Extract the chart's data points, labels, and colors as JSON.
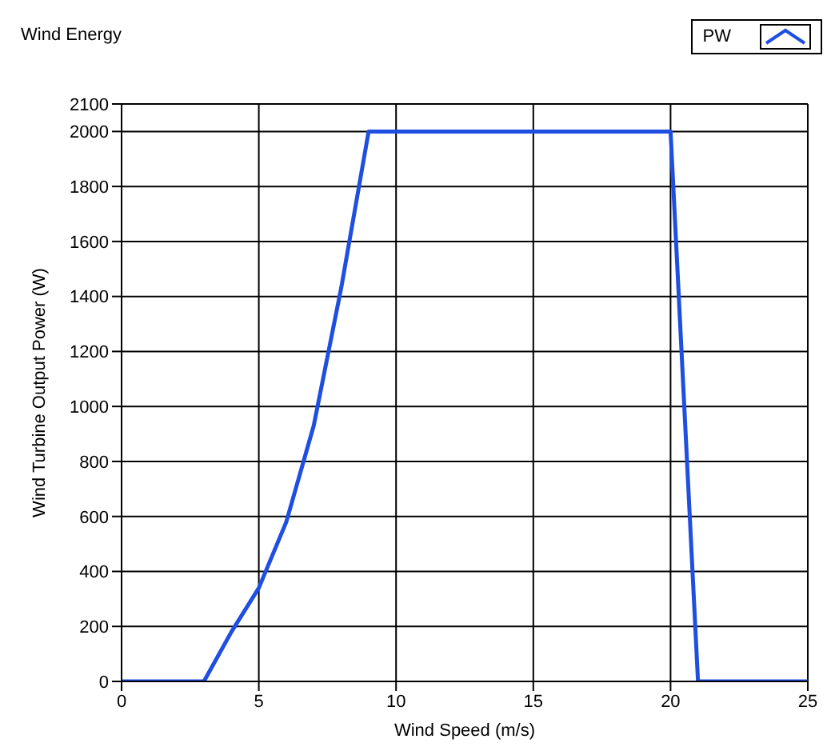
{
  "chart_data": {
    "type": "line",
    "title": "Wind Energy",
    "xlabel": "Wind Speed (m/s)",
    "ylabel": "Wind Turbine Output Power (W)",
    "x": [
      0,
      3,
      4,
      5,
      6,
      7,
      8,
      9,
      20,
      21,
      25
    ],
    "series": [
      {
        "name": "PW",
        "color": "#1f4fe0",
        "values": [
          0,
          0,
          180,
          340,
          580,
          930,
          1430,
          2000,
          2000,
          0,
          0
        ]
      }
    ],
    "xlim": [
      0,
      25
    ],
    "xticks": [
      0,
      5,
      10,
      15,
      20,
      25
    ],
    "ylim": [
      0,
      2100
    ],
    "yticks": [
      0,
      200,
      400,
      600,
      800,
      1000,
      1200,
      1400,
      1600,
      1800,
      2000,
      2100
    ],
    "grid": true,
    "legend": "top right",
    "marker": "none",
    "line_style": "solid"
  }
}
